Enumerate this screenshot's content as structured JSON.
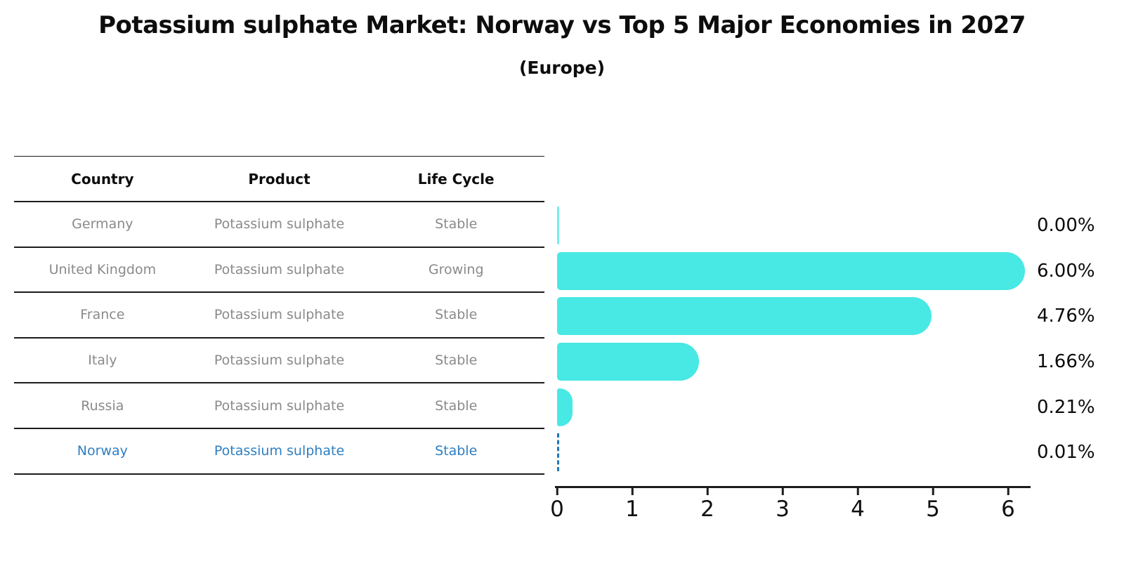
{
  "title": "Potassium sulphate Market: Norway vs Top 5 Major Economies in 2027",
  "subtitle": "(Europe)",
  "colors": {
    "bar": "#48e8e4",
    "highlight_text": "#2f7fc1",
    "highlight_bar_edge": "#1f77b4",
    "row_text": "#8a8a8a",
    "header_text": "#0d0d0d",
    "axis": "#1c1c1c"
  },
  "table": {
    "headers": [
      "Country",
      "Product",
      "Life Cycle"
    ],
    "rows": [
      {
        "country": "Germany",
        "product": "Potassium sulphate",
        "life_cycle": "Stable"
      },
      {
        "country": "United Kingdom",
        "product": "Potassium sulphate",
        "life_cycle": "Growing"
      },
      {
        "country": "France",
        "product": "Potassium sulphate",
        "life_cycle": "Stable"
      },
      {
        "country": "Italy",
        "product": "Potassium sulphate",
        "life_cycle": "Stable"
      },
      {
        "country": "Russia",
        "product": "Potassium sulphate",
        "life_cycle": "Stable"
      },
      {
        "country": "Norway",
        "product": "Potassium sulphate",
        "life_cycle": "Stable"
      }
    ],
    "highlight_row": "Norway"
  },
  "chart_data": {
    "type": "bar",
    "orientation": "horizontal",
    "title": "Potassium sulphate Market: Norway vs Top 5 Major Economies in 2027",
    "subtitle": "(Europe)",
    "categories": [
      "Germany",
      "United Kingdom",
      "France",
      "Italy",
      "Russia",
      "Norway"
    ],
    "values": [
      0.0,
      6.0,
      4.76,
      1.66,
      0.21,
      0.01
    ],
    "value_labels": [
      "0.00%",
      "6.00%",
      "4.76%",
      "1.66%",
      "0.21%",
      "0.01%"
    ],
    "xlim": [
      0,
      6.3
    ],
    "xticks": [
      "0",
      "1",
      "2",
      "3",
      "4",
      "5",
      "6"
    ],
    "grid": false,
    "legend": false,
    "highlight_index": 5,
    "highlight_style": "dashed-outline",
    "bar_color": "#48e8e4"
  }
}
